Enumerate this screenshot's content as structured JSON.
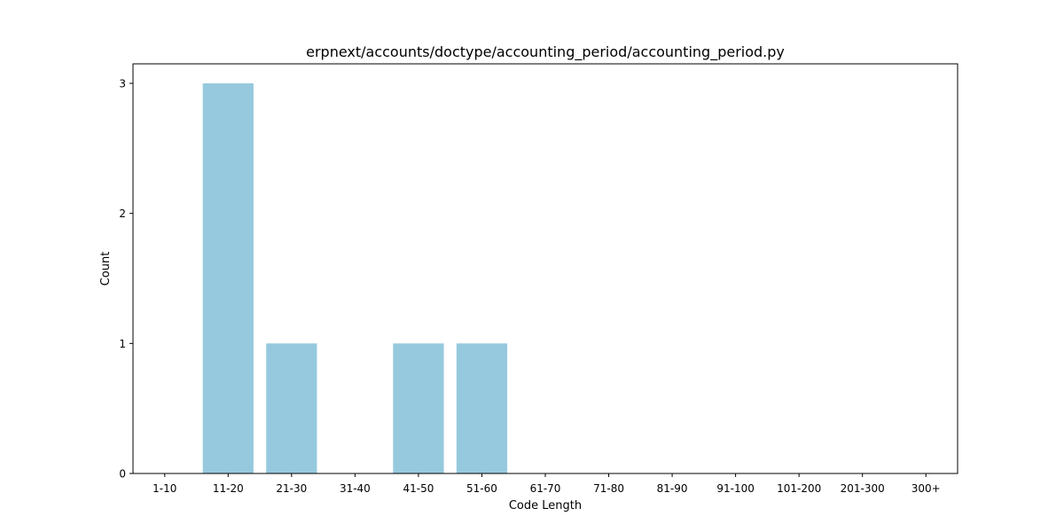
{
  "chart_data": {
    "type": "bar",
    "title": "erpnext/accounts/doctype/accounting_period/accounting_period.py",
    "xlabel": "Code Length",
    "ylabel": "Count",
    "categories": [
      "1-10",
      "11-20",
      "21-30",
      "31-40",
      "41-50",
      "51-60",
      "61-70",
      "71-80",
      "81-90",
      "91-100",
      "101-200",
      "201-300",
      "300+"
    ],
    "values": [
      0,
      3,
      1,
      0,
      1,
      1,
      0,
      0,
      0,
      0,
      0,
      0,
      0
    ],
    "ylim": [
      0,
      3.15
    ],
    "yticks": [
      0,
      1,
      2,
      3
    ],
    "bar_color": "#96c9dd",
    "grid": false,
    "legend": "none"
  }
}
